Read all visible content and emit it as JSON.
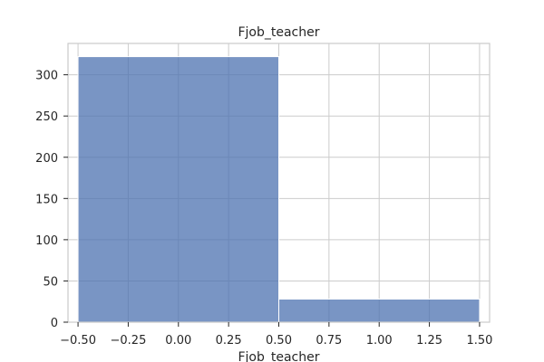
{
  "chart_data": {
    "type": "bar",
    "title": "Fjob_teacher",
    "xlabel": "Fjob_teacher",
    "ylabel": "",
    "bins": [
      {
        "x_start": -0.5,
        "x_end": 0.5,
        "count": 322
      },
      {
        "x_start": 0.5,
        "x_end": 1.5,
        "count": 28
      }
    ],
    "xlim": [
      -0.55,
      1.55
    ],
    "ylim": [
      0,
      338
    ],
    "x_ticks": [
      -0.5,
      -0.25,
      0.0,
      0.25,
      0.5,
      0.75,
      1.0,
      1.25,
      1.5
    ],
    "x_tick_labels": [
      "−0.50",
      "−0.25",
      "0.00",
      "0.25",
      "0.50",
      "0.75",
      "1.00",
      "1.25",
      "1.50"
    ],
    "y_ticks": [
      0,
      50,
      100,
      150,
      200,
      250,
      300
    ],
    "y_tick_labels": [
      "0",
      "50",
      "100",
      "150",
      "200",
      "250",
      "300"
    ],
    "grid": true,
    "bar_color": "#4c72b0",
    "bar_alpha": 0.75
  }
}
